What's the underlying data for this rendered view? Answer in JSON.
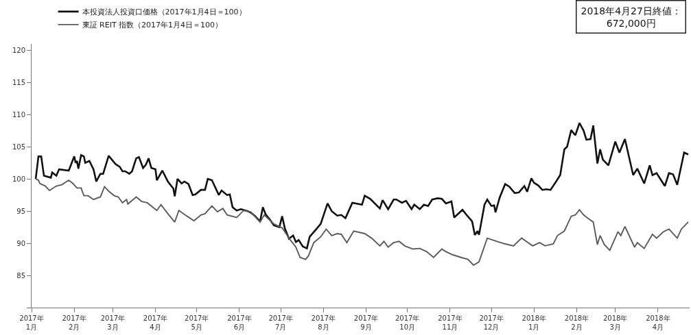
{
  "chart_data": {
    "type": "line",
    "legend": "top left",
    "annotations": [
      "2018年4月27日終値：\n672,000円"
    ],
    "xlim": [
      "2017-01-01",
      "2018-04-24"
    ],
    "xticks": [
      {
        "value": "2017-01-01",
        "label": "2017年\n1月"
      },
      {
        "value": "2017-02-01",
        "label": "2017年\n2月"
      },
      {
        "value": "2017-03-01",
        "label": "2017年\n3月"
      },
      {
        "value": "2017-04-01",
        "label": "2017年\n4月"
      },
      {
        "value": "2017-05-01",
        "label": "2017年\n5月"
      },
      {
        "value": "2017-06-01",
        "label": "2017年\n6月"
      },
      {
        "value": "2017-07-01",
        "label": "2017年\n7月"
      },
      {
        "value": "2017-08-01",
        "label": "2017年\n8月"
      },
      {
        "value": "2017-09-01",
        "label": "2017年\n9月"
      },
      {
        "value": "2017-10-01",
        "label": "2017年\n10月"
      },
      {
        "value": "2017-11-01",
        "label": "2017年\n11月"
      },
      {
        "value": "2017-12-01",
        "label": "2017年\n12月"
      },
      {
        "value": "2018-01-01",
        "label": "2018年\n1月"
      },
      {
        "value": "2018-02-01",
        "label": "2018年\n2月"
      },
      {
        "value": "2018-03-01",
        "label": "2018年\n3月"
      },
      {
        "value": "2018-04-01",
        "label": "2018年\n4月"
      }
    ],
    "ylim": [
      80,
      121
    ],
    "yticks": [
      {
        "value": 80,
        "label": null
      },
      85,
      90,
      95,
      100,
      105,
      110,
      115,
      120
    ],
    "series": [
      {
        "name": "本投資法人投資口価格（2017年1月4日＝100）",
        "color": "#111111",
        "x": [
          "2017-01-04",
          "2017-01-06",
          "2017-01-08",
          "2017-01-10",
          "2017-01-15",
          "2017-01-16",
          "2017-01-19",
          "2017-01-21",
          "2017-01-28",
          "2017-02-01",
          "2017-02-02",
          "2017-02-03",
          "2017-02-04",
          "2017-02-06",
          "2017-02-08",
          "2017-02-09",
          "2017-02-12",
          "2017-02-15",
          "2017-02-17",
          "2017-02-20",
          "2017-02-22",
          "2017-02-26",
          "2017-03-03",
          "2017-03-06",
          "2017-03-08",
          "2017-03-10",
          "2017-03-13",
          "2017-03-15",
          "2017-03-18",
          "2017-03-20",
          "2017-03-23",
          "2017-03-25",
          "2017-03-27",
          "2017-03-29",
          "2017-04-01",
          "2017-04-02",
          "2017-04-06",
          "2017-04-10",
          "2017-04-14",
          "2017-04-15",
          "2017-04-17",
          "2017-04-20",
          "2017-04-22",
          "2017-04-25",
          "2017-04-28",
          "2017-04-30",
          "2017-05-04",
          "2017-05-07",
          "2017-05-09",
          "2017-05-12",
          "2017-05-17",
          "2017-05-19",
          "2017-05-23",
          "2017-05-25",
          "2017-05-27",
          "2017-05-30",
          "2017-06-02",
          "2017-06-07",
          "2017-06-09",
          "2017-06-12",
          "2017-06-16",
          "2017-06-18",
          "2017-06-20",
          "2017-06-23",
          "2017-06-26",
          "2017-06-30",
          "2017-07-02",
          "2017-07-04",
          "2017-07-07",
          "2017-07-10",
          "2017-07-12",
          "2017-07-14",
          "2017-07-17",
          "2017-07-20",
          "2017-07-22",
          "2017-07-26",
          "2017-07-30",
          "2017-08-04",
          "2017-08-07",
          "2017-08-11",
          "2017-08-14",
          "2017-08-17",
          "2017-08-22",
          "2017-08-29",
          "2017-08-31",
          "2017-09-04",
          "2017-09-11",
          "2017-09-13",
          "2017-09-17",
          "2017-09-21",
          "2017-09-23",
          "2017-09-27",
          "2017-09-30",
          "2017-10-04",
          "2017-10-06",
          "2017-10-10",
          "2017-10-13",
          "2017-10-16",
          "2017-10-19",
          "2017-10-23",
          "2017-10-26",
          "2017-10-29",
          "2017-11-02",
          "2017-11-04",
          "2017-11-10",
          "2017-11-13",
          "2017-11-17",
          "2017-11-19",
          "2017-11-21",
          "2017-11-22",
          "2017-11-26",
          "2017-11-28",
          "2017-12-01",
          "2017-12-03",
          "2017-12-04",
          "2017-12-07",
          "2017-12-11",
          "2017-12-14",
          "2017-12-18",
          "2017-12-21",
          "2017-12-25",
          "2017-12-27",
          "2017-12-30",
          "2018-01-01",
          "2018-01-04",
          "2018-01-07",
          "2018-01-10",
          "2018-01-13",
          "2018-01-17",
          "2018-01-20",
          "2018-01-23",
          "2018-01-25",
          "2018-01-28",
          "2018-01-29",
          "2018-01-31",
          "2018-02-03",
          "2018-02-06",
          "2018-02-08",
          "2018-02-11",
          "2018-02-13",
          "2018-02-16",
          "2018-02-18",
          "2018-02-20",
          "2018-02-24",
          "2018-03-01",
          "2018-03-04",
          "2018-03-08",
          "2018-03-14",
          "2018-03-17",
          "2018-03-22",
          "2018-03-26",
          "2018-03-28",
          "2018-03-31",
          "2018-04-06",
          "2018-04-09",
          "2018-04-12",
          "2018-04-15",
          "2018-04-20",
          "2018-04-23"
        ],
        "values": [
          100,
          103.5,
          103.5,
          100.5,
          100.2,
          101,
          100.5,
          101.5,
          101.3,
          103.5,
          102.5,
          102.8,
          101.6,
          103.7,
          103.5,
          102.5,
          102.8,
          101.5,
          99.6,
          100.8,
          100.8,
          103.6,
          102.3,
          101.9,
          101.2,
          101.2,
          100.8,
          101.2,
          103.2,
          103.4,
          101.7,
          102.2,
          103.2,
          101.7,
          101.5,
          99.8,
          101.3,
          99.6,
          98.5,
          97.3,
          100,
          99.3,
          99.6,
          99.2,
          97.5,
          97.6,
          98.3,
          98.3,
          100,
          99.8,
          97.5,
          98.2,
          97.5,
          97.6,
          95.6,
          95.1,
          95.3,
          95,
          94.8,
          94.3,
          93.4,
          95.6,
          94.5,
          93.7,
          92.8,
          92.5,
          94.2,
          92.3,
          90.7,
          91.2,
          90.2,
          90.5,
          89.5,
          89.2,
          91,
          92,
          93,
          96.2,
          95,
          94.3,
          94.4,
          93.9,
          96.3,
          96,
          97.4,
          96.9,
          95.4,
          96.7,
          95.3,
          96.8,
          96.8,
          96.3,
          96.6,
          95.3,
          96,
          95.3,
          96,
          95.8,
          96.8,
          97,
          96.9,
          96.2,
          96.5,
          94,
          95.2,
          94.4,
          93.4,
          91.3,
          91.9,
          91.3,
          96,
          96.8,
          95.8,
          95.9,
          94.8,
          97.1,
          99.2,
          98.8,
          97.8,
          97.9,
          98.9,
          98,
          100.1,
          99.4,
          99,
          98.3,
          98.4,
          98.3,
          99.6,
          100.6,
          104.6,
          105,
          107.6,
          107.3,
          106.8,
          108.7,
          107.5,
          106.1,
          106.2,
          108.3,
          102.4,
          104.6,
          103,
          102.1,
          105.8,
          104.1,
          106.2,
          100.6,
          101.6,
          99.3,
          102.1,
          100.6,
          100.9,
          98.9,
          100.9,
          100.7,
          99.1,
          104.1,
          103.8
        ]
      },
      {
        "name": "東証 REIT 指数（2017年1月4日＝100）",
        "color": "#5a5a5a",
        "x": [
          "2017-01-04",
          "2017-01-06",
          "2017-01-07",
          "2017-01-11",
          "2017-01-14",
          "2017-01-19",
          "2017-01-23",
          "2017-01-28",
          "2017-01-31",
          "2017-02-03",
          "2017-02-06",
          "2017-02-08",
          "2017-02-11",
          "2017-02-15",
          "2017-02-20",
          "2017-02-23",
          "2017-02-26",
          "2017-03-02",
          "2017-03-05",
          "2017-03-08",
          "2017-03-11",
          "2017-03-12",
          "2017-03-18",
          "2017-03-22",
          "2017-03-26",
          "2017-04-02",
          "2017-04-05",
          "2017-04-10",
          "2017-04-15",
          "2017-04-18",
          "2017-04-24",
          "2017-04-29",
          "2017-05-04",
          "2017-05-07",
          "2017-05-12",
          "2017-05-16",
          "2017-05-20",
          "2017-05-23",
          "2017-05-30",
          "2017-06-04",
          "2017-06-09",
          "2017-06-16",
          "2017-06-19",
          "2017-06-26",
          "2017-07-02",
          "2017-07-08",
          "2017-07-12",
          "2017-07-15",
          "2017-07-19",
          "2017-07-21",
          "2017-07-25",
          "2017-07-30",
          "2017-08-03",
          "2017-08-07",
          "2017-08-11",
          "2017-08-14",
          "2017-08-18",
          "2017-08-23",
          "2017-08-31",
          "2017-09-05",
          "2017-09-11",
          "2017-09-14",
          "2017-09-17",
          "2017-09-21",
          "2017-09-25",
          "2017-09-29",
          "2017-10-05",
          "2017-10-10",
          "2017-10-15",
          "2017-10-20",
          "2017-10-26",
          "2017-10-29",
          "2017-11-03",
          "2017-11-09",
          "2017-11-14",
          "2017-11-18",
          "2017-11-22",
          "2017-11-28",
          "2017-12-05",
          "2017-12-11",
          "2017-12-17",
          "2017-12-23",
          "2017-12-31",
          "2018-01-05",
          "2018-01-09",
          "2018-01-15",
          "2018-01-18",
          "2018-01-23",
          "2018-01-28",
          "2018-01-31",
          "2018-02-03",
          "2018-02-06",
          "2018-02-09",
          "2018-02-13",
          "2018-02-16",
          "2018-02-18",
          "2018-02-21",
          "2018-02-25",
          "2018-03-03",
          "2018-03-05",
          "2018-03-08",
          "2018-03-15",
          "2018-03-17",
          "2018-03-22",
          "2018-03-28",
          "2018-03-31",
          "2018-04-05",
          "2018-04-09",
          "2018-04-15",
          "2018-04-18",
          "2018-04-23"
        ],
        "values": [
          100,
          99.8,
          99.3,
          98.9,
          98.2,
          98.9,
          99.1,
          99.8,
          99.3,
          98.6,
          98.6,
          97.4,
          97.4,
          96.8,
          97.2,
          98.8,
          98.1,
          97.4,
          97.2,
          96.3,
          96.8,
          96.1,
          97.2,
          96.5,
          96.3,
          95.1,
          96,
          94.6,
          93.3,
          95.1,
          94.2,
          93.5,
          94.4,
          94.6,
          95.8,
          94.9,
          95.4,
          94.4,
          94,
          95.1,
          94.9,
          93.3,
          94.4,
          93,
          92.4,
          90.5,
          89.4,
          87.8,
          87.5,
          88,
          90.1,
          91,
          92.2,
          91.2,
          91.5,
          91.4,
          90.1,
          91.9,
          91.5,
          90.8,
          89.6,
          90.3,
          89.4,
          90.1,
          90.3,
          89.6,
          89.1,
          89.2,
          88.7,
          87.8,
          89.1,
          88.7,
          88.2,
          87.8,
          87.5,
          86.6,
          87.1,
          90.8,
          90.3,
          89.9,
          89.6,
          90.8,
          89.6,
          90.1,
          89.6,
          89.9,
          91.2,
          91.9,
          94.2,
          94.4,
          95.2,
          94.4,
          93.9,
          93.3,
          89.8,
          91.2,
          89.8,
          88.9,
          91.8,
          91.2,
          92.6,
          89.4,
          90.1,
          89.2,
          91.4,
          90.8,
          91.8,
          92.2,
          90.8,
          92.2,
          93.3
        ]
      }
    ]
  }
}
